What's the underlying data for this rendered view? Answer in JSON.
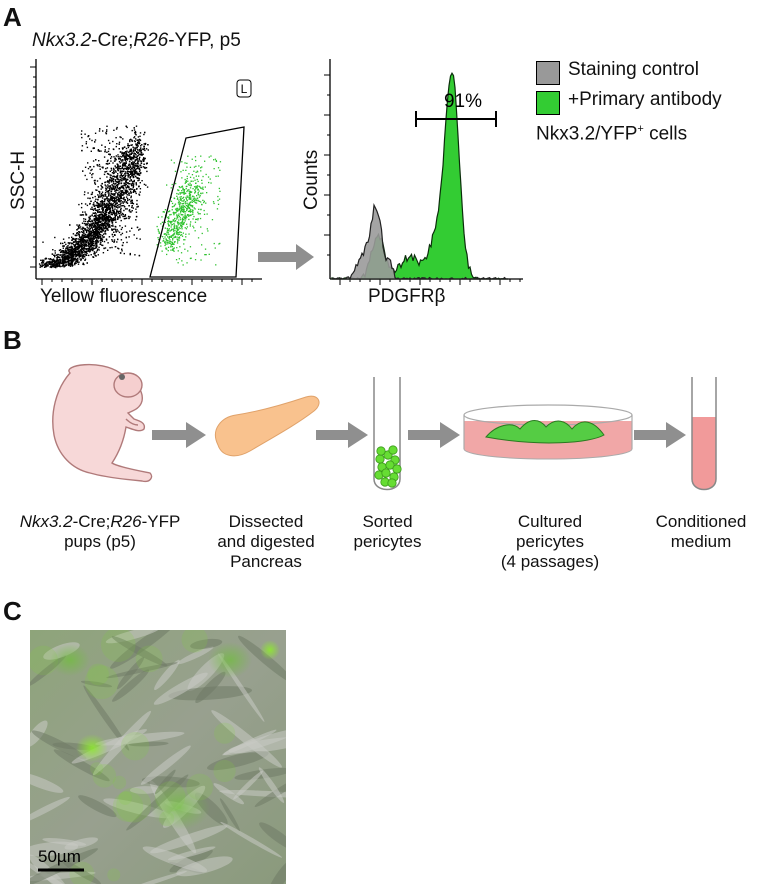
{
  "panels": {
    "a": {
      "letter": "A",
      "title": {
        "gene_ital": "Nkx3.2",
        "mid": "-Cre;",
        "r26_ital": "R26",
        "tail": "-YFP, p5"
      },
      "scatter": {
        "gate_label": "L",
        "xlabel": "Yellow fluorescence",
        "ylabel": "SSC-H"
      },
      "histogram": {
        "xlabel": "PDGFRβ",
        "ylabel": "Counts",
        "marker_label": "91%"
      },
      "legend": {
        "items": [
          {
            "label": "Staining control",
            "color": "#999999"
          },
          {
            "label": "+Primary antibody",
            "color": "#33cc33"
          }
        ],
        "note_prefix": "Nkx3.2/YFP",
        "note_sup": "+",
        "note_suffix": " cells"
      }
    },
    "b": {
      "letter": "B",
      "steps": [
        {
          "line1_ital": "Nkx3.2",
          "line1_a": "-Cre;",
          "line1_ital2": "R26",
          "line1_b": "-YFP",
          "line2": "pups (p5)"
        },
        {
          "line1": "Dissected",
          "line2": "and digested",
          "line3": "Pancreas"
        },
        {
          "line1": "Sorted",
          "line2": "pericytes"
        },
        {
          "line1": "Cultured",
          "line2": "pericytes",
          "line3": "(4 passages)"
        },
        {
          "line1": "Conditioned",
          "line2": "medium"
        }
      ]
    },
    "c": {
      "letter": "C",
      "scalebar": "50µm"
    }
  },
  "chart_data": [
    {
      "type": "scatter",
      "xlabel": "Yellow fluorescence",
      "ylabel": "SSC-H",
      "gate": "L",
      "series": [
        {
          "name": "YFP- cells",
          "color": "#000000"
        },
        {
          "name": "YFP+ cells (gated)",
          "color": "#33cc33"
        }
      ]
    },
    {
      "type": "area",
      "xlabel": "PDGFRβ",
      "ylabel": "Counts",
      "annotation": "91%",
      "series": [
        {
          "name": "Staining control",
          "color": "#999999"
        },
        {
          "name": "+Primary antibody",
          "color": "#33cc33"
        }
      ]
    }
  ]
}
